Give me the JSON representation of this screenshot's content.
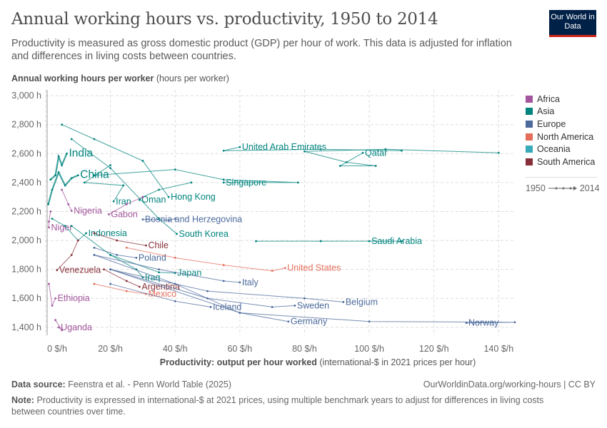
{
  "header": {
    "title": "Annual working hours vs. productivity, 1950 to 2014",
    "subtitle": "Productivity is measured as gross domestic product (GDP) per hour of work. This data is adjusted for inflation and differences in living costs between countries.",
    "logo": "Our World in Data"
  },
  "footer": {
    "source_label": "Data source:",
    "source": "Feenstra et al. - Penn World Table (2025)",
    "url": "OurWorldinData.org/working-hours | CC BY",
    "note_label": "Note:",
    "note": "Productivity is expressed in international-$ at 2021 prices, using multiple benchmark years to adjust for differences in living costs between countries over time."
  },
  "legend": {
    "items": [
      {
        "label": "Africa",
        "color": "#a2559c"
      },
      {
        "label": "Asia",
        "color": "#00847e"
      },
      {
        "label": "Europe",
        "color": "#4c6a9c"
      },
      {
        "label": "North America",
        "color": "#e56e5a"
      },
      {
        "label": "Oceania",
        "color": "#38aaba"
      },
      {
        "label": "South America",
        "color": "#883039"
      }
    ],
    "start_year": "1950",
    "end_year": "2014"
  },
  "chart_data": {
    "type": "scatter",
    "connected": true,
    "title": "Annual working hours vs. productivity, 1950 to 2014",
    "xlabel_bold": "Productivity: output per hour worked",
    "xlabel_unit": "(international-$ in 2021 prices per hour)",
    "ylabel_bold": "Annual working hours per worker",
    "ylabel_unit": "(hours per worker)",
    "xlim": [
      0,
      145
    ],
    "ylim": [
      1345,
      3040
    ],
    "xticks": [
      "0 $/h",
      "20 $/h",
      "40 $/h",
      "60 $/h",
      "80 $/h",
      "100 $/h",
      "120 $/h",
      "140 $/h"
    ],
    "xtick_values": [
      0,
      20,
      40,
      60,
      80,
      100,
      120,
      140
    ],
    "yticks": [
      "1,400 h",
      "1,600 h",
      "1,800 h",
      "2,000 h",
      "2,200 h",
      "2,400 h",
      "2,600 h",
      "2,800 h",
      "3,000 h"
    ],
    "ytick_values": [
      1400,
      1600,
      1800,
      2000,
      2200,
      2400,
      2600,
      2800,
      3000
    ],
    "grid": true,
    "legend_position": "right",
    "series": [
      {
        "name": "India",
        "continent": "Asia",
        "points": [
          [
            1.5,
            2420
          ],
          [
            3,
            2450
          ],
          [
            4,
            2580
          ],
          [
            5,
            2520
          ],
          [
            6.5,
            2600
          ]
        ]
      },
      {
        "name": "China",
        "continent": "Asia",
        "points": [
          [
            0.8,
            2250
          ],
          [
            2,
            2350
          ],
          [
            4,
            2470
          ],
          [
            6,
            2380
          ],
          [
            8,
            2430
          ],
          [
            10,
            2450
          ]
        ]
      },
      {
        "name": "Iran",
        "continent": "Asia",
        "points": [
          [
            20,
            2520
          ],
          [
            12,
            2400
          ],
          [
            24,
            2380
          ],
          [
            21,
            2270
          ]
        ]
      },
      {
        "name": "Oman",
        "continent": "Asia",
        "points": [
          [
            45,
            2400
          ],
          [
            35,
            2350
          ],
          [
            30,
            2300
          ],
          [
            29,
            2280
          ]
        ]
      },
      {
        "name": "Hong Kong",
        "continent": "Asia",
        "points": [
          [
            5,
            2800
          ],
          [
            15,
            2700
          ],
          [
            30,
            2550
          ],
          [
            38,
            2300
          ]
        ]
      },
      {
        "name": "United Arab Emirates",
        "continent": "Asia",
        "points": [
          [
            110,
            2620
          ],
          [
            85,
            2630
          ],
          [
            55,
            2620
          ],
          [
            60,
            2645
          ]
        ]
      },
      {
        "name": "Qatar",
        "continent": "Asia",
        "points": [
          [
            140,
            2605
          ],
          [
            105,
            2630
          ],
          [
            80,
            2615
          ],
          [
            93,
            2540
          ],
          [
            102,
            2515
          ],
          [
            91,
            2515
          ],
          [
            98,
            2605
          ]
        ]
      },
      {
        "name": "Singapore",
        "continent": "Asia",
        "points": [
          [
            15,
            2450
          ],
          [
            40,
            2490
          ],
          [
            55,
            2420
          ],
          [
            78,
            2400
          ],
          [
            55,
            2400
          ]
        ]
      },
      {
        "name": "Nigeria",
        "continent": "Africa",
        "points": [
          [
            5,
            2350
          ],
          [
            7,
            2250
          ],
          [
            8,
            2205
          ]
        ]
      },
      {
        "name": "Gabon",
        "continent": "Africa",
        "points": [
          [
            30,
            2300
          ],
          [
            25,
            2250
          ],
          [
            19.5,
            2180
          ]
        ]
      },
      {
        "name": "Bosnia and Herzegovina",
        "continent": "Europe",
        "points": [
          [
            40,
            2150
          ],
          [
            38,
            2140
          ],
          [
            30,
            2145
          ]
        ]
      },
      {
        "name": "Niger",
        "continent": "Africa",
        "points": [
          [
            1.5,
            2200
          ],
          [
            1,
            2130
          ],
          [
            1,
            2090
          ]
        ]
      },
      {
        "name": "Indonesia",
        "continent": "Asia",
        "points": [
          [
            2,
            2150
          ],
          [
            6,
            2100
          ],
          [
            10,
            2000
          ],
          [
            12.5,
            2050
          ]
        ]
      },
      {
        "name": "South Korea",
        "continent": "Asia",
        "points": [
          [
            8,
            2700
          ],
          [
            20,
            2500
          ],
          [
            35,
            2150
          ],
          [
            40.5,
            2045
          ]
        ]
      },
      {
        "name": "Saudi Arabia",
        "continent": "Asia",
        "points": [
          [
            65,
            1995
          ],
          [
            85,
            1995
          ],
          [
            110,
            1995
          ],
          [
            100,
            1995
          ]
        ]
      },
      {
        "name": "Chile",
        "continent": "South America",
        "points": [
          [
            15,
            2050
          ],
          [
            22,
            2000
          ],
          [
            31,
            1965
          ]
        ]
      },
      {
        "name": "Poland",
        "continent": "Europe",
        "points": [
          [
            15,
            1950
          ],
          [
            22,
            1900
          ],
          [
            28,
            1880
          ]
        ]
      },
      {
        "name": "United States",
        "continent": "North America",
        "points": [
          [
            25,
            1950
          ],
          [
            40,
            1880
          ],
          [
            55,
            1830
          ],
          [
            70,
            1790
          ],
          [
            74,
            1810
          ]
        ]
      },
      {
        "name": "Venezuela",
        "continent": "South America",
        "points": [
          [
            10,
            2000
          ],
          [
            8,
            1900
          ],
          [
            3.5,
            1795
          ]
        ]
      },
      {
        "name": "Japan",
        "continent": "Asia",
        "points": [
          [
            8,
            2100
          ],
          [
            20,
            1900
          ],
          [
            35,
            1780
          ],
          [
            40,
            1775
          ]
        ]
      },
      {
        "name": "Iraq",
        "continent": "Asia",
        "points": [
          [
            20,
            1900
          ],
          [
            28,
            1800
          ],
          [
            30,
            1745
          ]
        ]
      },
      {
        "name": "Italy",
        "continent": "Europe",
        "points": [
          [
            15,
            1900
          ],
          [
            35,
            1800
          ],
          [
            55,
            1720
          ],
          [
            60,
            1710
          ]
        ]
      },
      {
        "name": "Argentina",
        "continent": "South America",
        "points": [
          [
            18,
            1800
          ],
          [
            25,
            1720
          ],
          [
            29,
            1680
          ]
        ]
      },
      {
        "name": "Mexico",
        "continent": "North America",
        "points": [
          [
            15,
            1700
          ],
          [
            25,
            1650
          ],
          [
            31,
            1630
          ]
        ]
      },
      {
        "name": "Ethiopia",
        "continent": "Africa",
        "points": [
          [
            1,
            1700
          ],
          [
            2,
            1550
          ],
          [
            3,
            1600
          ]
        ]
      },
      {
        "name": "Belgium",
        "continent": "Europe",
        "points": [
          [
            20,
            1800
          ],
          [
            50,
            1650
          ],
          [
            80,
            1600
          ],
          [
            92,
            1575
          ]
        ]
      },
      {
        "name": "Iceland",
        "continent": "Europe",
        "points": [
          [
            20,
            1700
          ],
          [
            40,
            1580
          ],
          [
            51,
            1540
          ]
        ]
      },
      {
        "name": "Sweden",
        "continent": "Europe",
        "points": [
          [
            20,
            1800
          ],
          [
            50,
            1600
          ],
          [
            70,
            1540
          ],
          [
            77,
            1550
          ]
        ]
      },
      {
        "name": "Germany",
        "continent": "Europe",
        "points": [
          [
            15,
            1900
          ],
          [
            40,
            1700
          ],
          [
            60,
            1500
          ],
          [
            75,
            1440
          ]
        ]
      },
      {
        "name": "Norway",
        "continent": "Europe",
        "points": [
          [
            20,
            1800
          ],
          [
            60,
            1500
          ],
          [
            100,
            1440
          ],
          [
            145,
            1435
          ],
          [
            130,
            1430
          ]
        ]
      },
      {
        "name": "Uganda",
        "continent": "Africa",
        "points": [
          [
            3,
            1450
          ],
          [
            5,
            1380
          ],
          [
            4,
            1400
          ]
        ]
      }
    ]
  }
}
